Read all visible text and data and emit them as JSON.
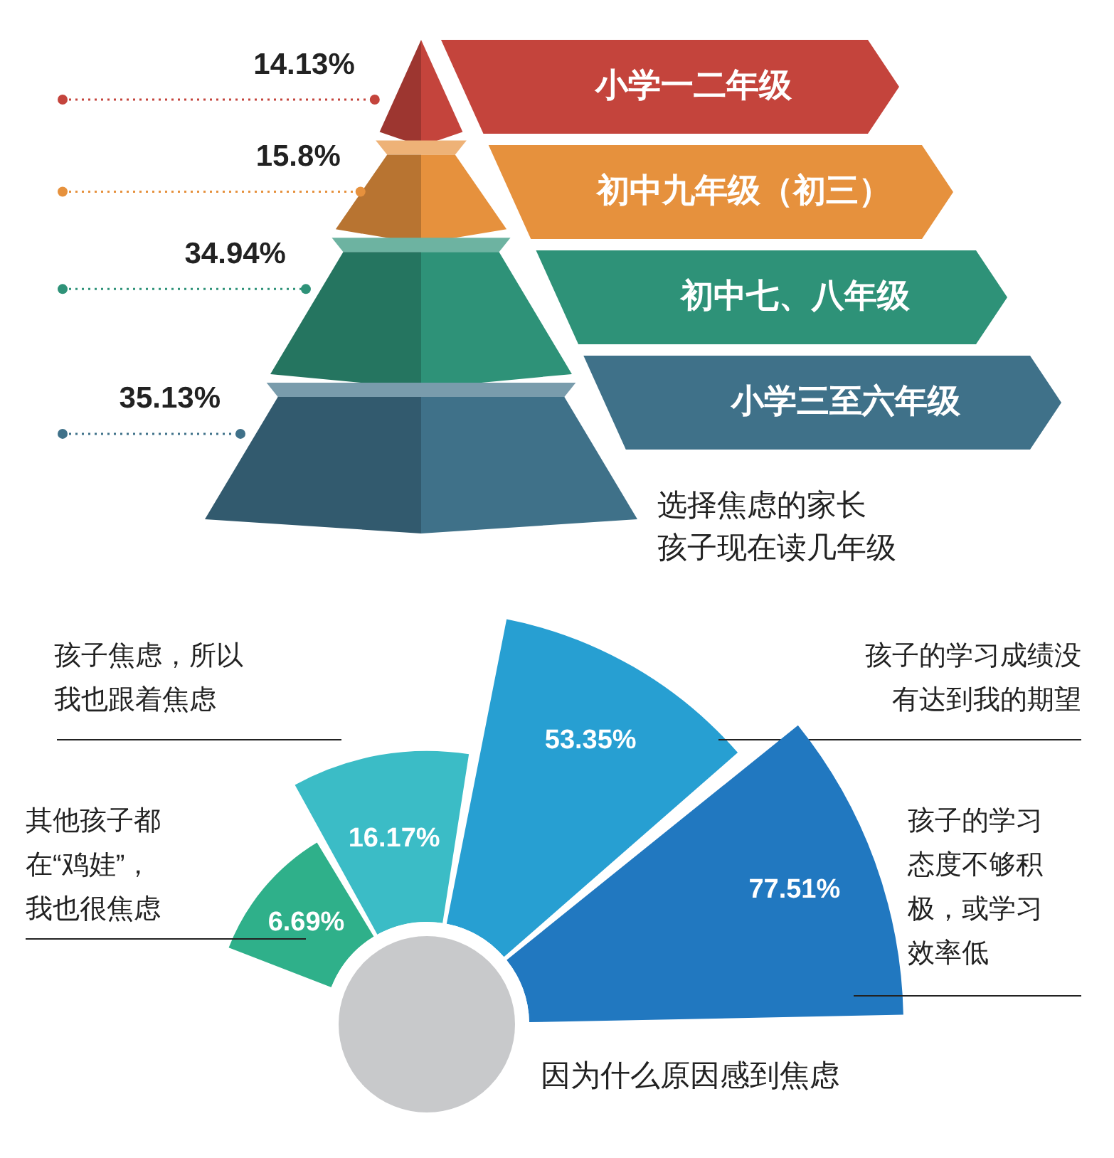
{
  "chart_data": [
    {
      "type": "other",
      "title": "选择焦虑的家长孩子现在读几年级",
      "categories": [
        "小学一二年级",
        "初中九年级（初三）",
        "初中七、八年级",
        "小学三至六年级"
      ],
      "values": [
        14.13,
        15.8,
        34.94,
        35.13
      ],
      "value_labels": [
        "14.13%",
        "15.8%",
        "34.94%",
        "35.13%"
      ],
      "colors": [
        "#c4443c",
        "#e6913d",
        "#2e9278",
        "#3f7189"
      ]
    },
    {
      "type": "other",
      "title": "因为什么原因感到焦虑",
      "categories": [
        "其他孩子都在“鸡娃”，我也很焦虑",
        "孩子焦虑，所以我也跟着焦虑",
        "孩子的学习成绩没有达到我的期望",
        "孩子的学习态度不够积极，或学习效率低"
      ],
      "values": [
        6.69,
        16.17,
        53.35,
        77.51
      ],
      "value_labels": [
        "6.69%",
        "16.17%",
        "53.35%",
        "77.51%"
      ],
      "colors": [
        "#2fb08a",
        "#3bbcc6",
        "#279fd2",
        "#2178c0"
      ]
    }
  ]
}
